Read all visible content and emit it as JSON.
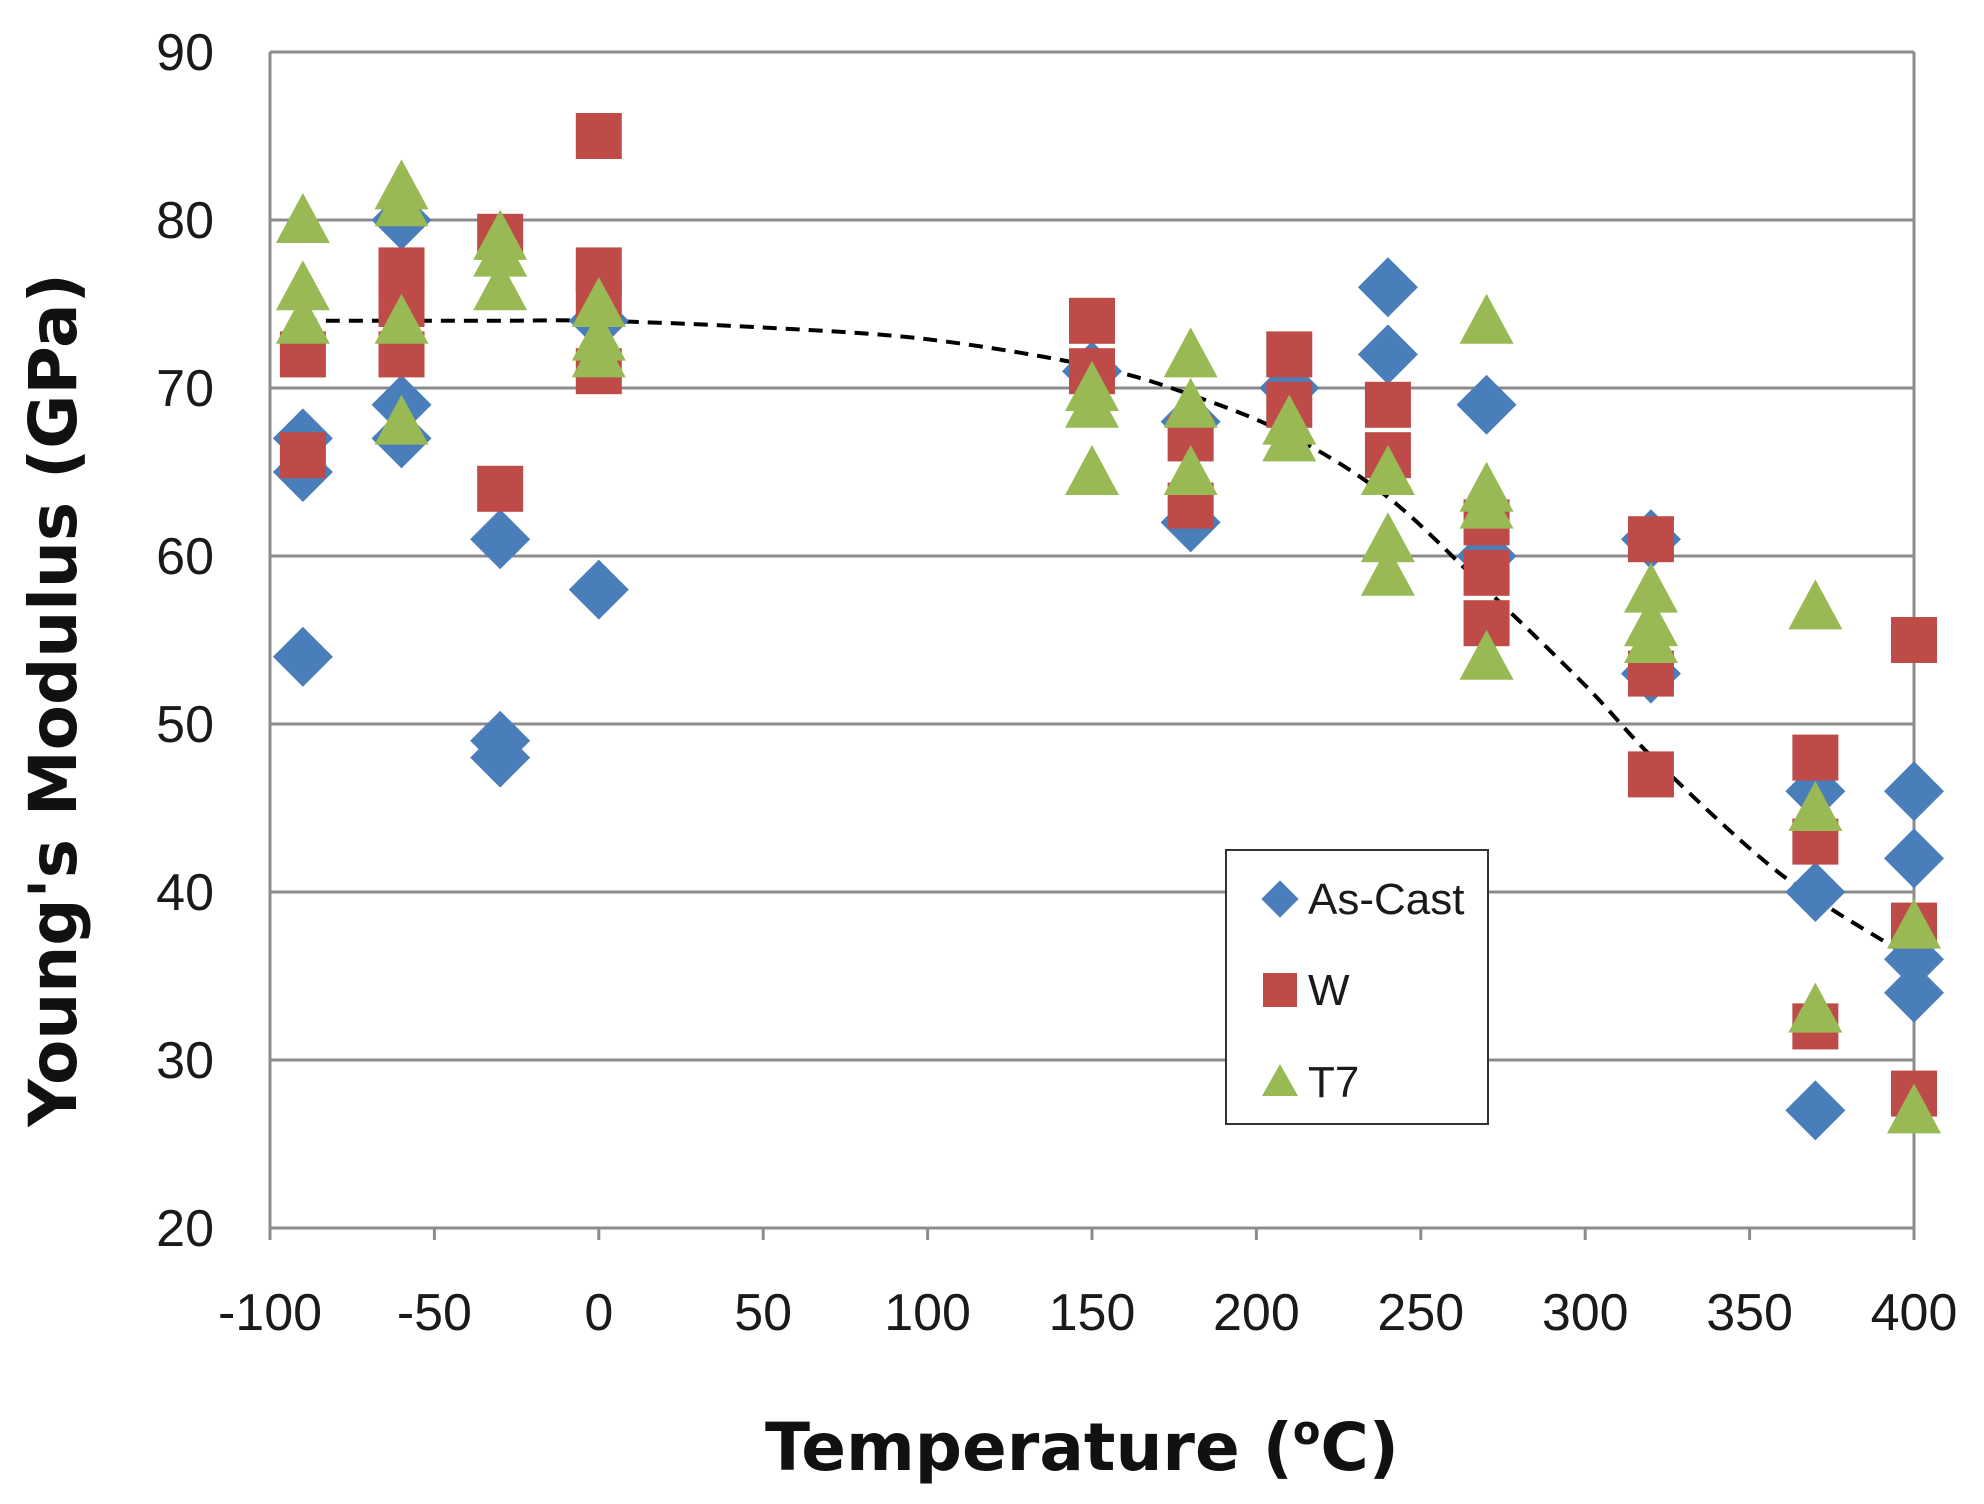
{
  "chart_data": {
    "type": "scatter",
    "xlabel": "Temperature (",
    "xlabel_superscript": "o",
    "xlabel_suffix": "C)",
    "ylabel": "Young's Modulus (GPa)",
    "xlim": [
      -100,
      400
    ],
    "ylim": [
      20,
      90
    ],
    "x_ticks": [
      -100,
      -50,
      0,
      50,
      100,
      150,
      200,
      250,
      300,
      350,
      400
    ],
    "y_ticks": [
      20,
      30,
      40,
      50,
      60,
      70,
      80,
      90
    ],
    "grid": "horizontal",
    "legend_position": "lower-right",
    "series": [
      {
        "name": "As-Cast",
        "marker": "diamond",
        "color": "#4a7ebb",
        "points": [
          [
            -90,
            54
          ],
          [
            -90,
            65
          ],
          [
            -90,
            67
          ],
          [
            -60,
            67
          ],
          [
            -60,
            69
          ],
          [
            -60,
            80
          ],
          [
            -30,
            48
          ],
          [
            -30,
            49
          ],
          [
            -30,
            61
          ],
          [
            0,
            58
          ],
          [
            0,
            74
          ],
          [
            150,
            71
          ],
          [
            180,
            62
          ],
          [
            180,
            68
          ],
          [
            210,
            70
          ],
          [
            240,
            76
          ],
          [
            240,
            72
          ],
          [
            270,
            69
          ],
          [
            270,
            60
          ],
          [
            320,
            53
          ],
          [
            320,
            61
          ],
          [
            370,
            27
          ],
          [
            370,
            40
          ],
          [
            370,
            46
          ],
          [
            400,
            34
          ],
          [
            400,
            36
          ],
          [
            400,
            42
          ],
          [
            400,
            46
          ]
        ]
      },
      {
        "name": "W",
        "marker": "square",
        "color": "#be4b48",
        "points": [
          [
            -90,
            66
          ],
          [
            -90,
            72
          ],
          [
            -60,
            72
          ],
          [
            -60,
            75
          ],
          [
            -60,
            77
          ],
          [
            -30,
            64
          ],
          [
            -30,
            79
          ],
          [
            0,
            71
          ],
          [
            0,
            75
          ],
          [
            0,
            77
          ],
          [
            0,
            85
          ],
          [
            150,
            71
          ],
          [
            150,
            74
          ],
          [
            180,
            63
          ],
          [
            180,
            67
          ],
          [
            210,
            69
          ],
          [
            210,
            72
          ],
          [
            240,
            66
          ],
          [
            240,
            69
          ],
          [
            270,
            56
          ],
          [
            270,
            59
          ],
          [
            270,
            62
          ],
          [
            320,
            47
          ],
          [
            320,
            53
          ],
          [
            320,
            61
          ],
          [
            370,
            32
          ],
          [
            370,
            43
          ],
          [
            370,
            48
          ],
          [
            400,
            28
          ],
          [
            400,
            38
          ],
          [
            400,
            55
          ]
        ]
      },
      {
        "name": "T7",
        "marker": "triangle",
        "color": "#98b954",
        "points": [
          [
            -90,
            80
          ],
          [
            -90,
            76
          ],
          [
            -90,
            74
          ],
          [
            -60,
            82
          ],
          [
            -60,
            81
          ],
          [
            -60,
            74
          ],
          [
            -60,
            68
          ],
          [
            -30,
            79
          ],
          [
            -30,
            78
          ],
          [
            -30,
            76
          ],
          [
            0,
            75
          ],
          [
            0,
            73
          ],
          [
            0,
            72
          ],
          [
            150,
            65
          ],
          [
            150,
            69
          ],
          [
            150,
            70
          ],
          [
            180,
            72
          ],
          [
            180,
            69
          ],
          [
            180,
            65
          ],
          [
            210,
            67
          ],
          [
            210,
            68
          ],
          [
            240,
            65
          ],
          [
            240,
            61
          ],
          [
            240,
            59
          ],
          [
            270,
            74
          ],
          [
            270,
            64
          ],
          [
            270,
            63
          ],
          [
            270,
            54
          ],
          [
            320,
            58
          ],
          [
            320,
            56
          ],
          [
            320,
            55
          ],
          [
            370,
            57
          ],
          [
            370,
            45
          ],
          [
            370,
            33
          ],
          [
            400,
            38
          ],
          [
            400,
            27
          ]
        ]
      }
    ],
    "trendline": {
      "style": "dashed",
      "color": "#000000",
      "points": [
        [
          -90,
          74
        ],
        [
          -60,
          74
        ],
        [
          -30,
          74
        ],
        [
          0,
          74
        ],
        [
          50,
          73.6
        ],
        [
          100,
          72.9
        ],
        [
          150,
          71.3
        ],
        [
          180,
          69.6
        ],
        [
          210,
          67.2
        ],
        [
          240,
          63.5
        ],
        [
          270,
          58
        ],
        [
          300,
          52.3
        ],
        [
          320,
          48.1
        ],
        [
          350,
          42.6
        ],
        [
          370,
          39.6
        ],
        [
          400,
          36
        ]
      ]
    }
  }
}
